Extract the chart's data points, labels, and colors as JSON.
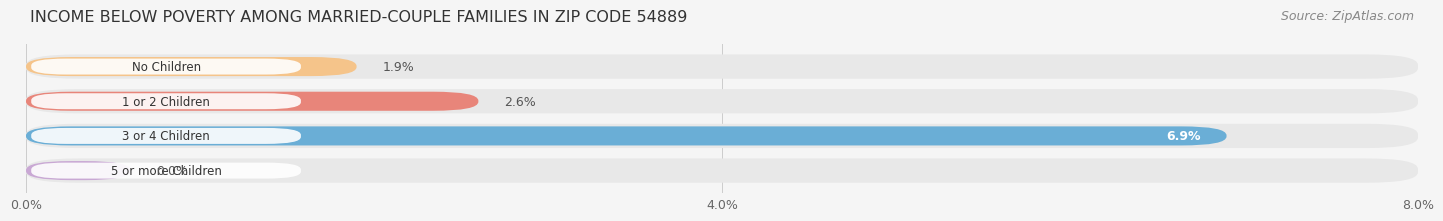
{
  "title": "INCOME BELOW POVERTY AMONG MARRIED-COUPLE FAMILIES IN ZIP CODE 54889",
  "source": "Source: ZipAtlas.com",
  "categories": [
    "No Children",
    "1 or 2 Children",
    "3 or 4 Children",
    "5 or more Children"
  ],
  "values": [
    1.9,
    2.6,
    6.9,
    0.0
  ],
  "bar_colors": [
    "#f5c48a",
    "#e8857a",
    "#6aaed6",
    "#c9a8d4"
  ],
  "track_color": "#e8e8e8",
  "xlim_max": 8.0,
  "xticks": [
    0.0,
    4.0,
    8.0
  ],
  "xticklabels": [
    "0.0%",
    "4.0%",
    "8.0%"
  ],
  "title_fontsize": 11.5,
  "source_fontsize": 9,
  "category_fontsize": 8.5,
  "value_label_fontsize": 9,
  "background_color": "#f5f5f5",
  "value_inside_color": "#ffffff",
  "value_outside_color": "#555555"
}
